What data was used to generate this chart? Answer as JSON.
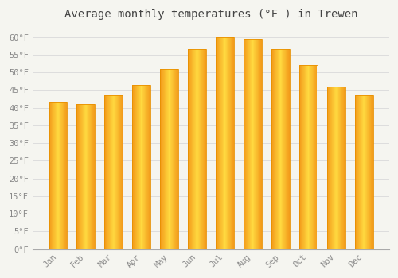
{
  "title": "Average monthly temperatures (°F ) in Trewen",
  "months": [
    "Jan",
    "Feb",
    "Mar",
    "Apr",
    "May",
    "Jun",
    "Jul",
    "Aug",
    "Sep",
    "Oct",
    "Nov",
    "Dec"
  ],
  "values": [
    41.5,
    41.0,
    43.5,
    46.5,
    51.0,
    56.5,
    60.0,
    59.5,
    56.5,
    52.0,
    46.0,
    43.5
  ],
  "bar_color": "#FFBB22",
  "bar_edge_color": "#E89000",
  "background_color": "#F5F5F0",
  "grid_color": "#DDDDDD",
  "title_color": "#444444",
  "tick_label_color": "#888888",
  "axis_line_color": "#AAAAAA",
  "ylim": [
    0,
    63
  ],
  "yticks": [
    0,
    5,
    10,
    15,
    20,
    25,
    30,
    35,
    40,
    45,
    50,
    55,
    60
  ],
  "title_fontsize": 10,
  "tick_fontsize": 7.5
}
